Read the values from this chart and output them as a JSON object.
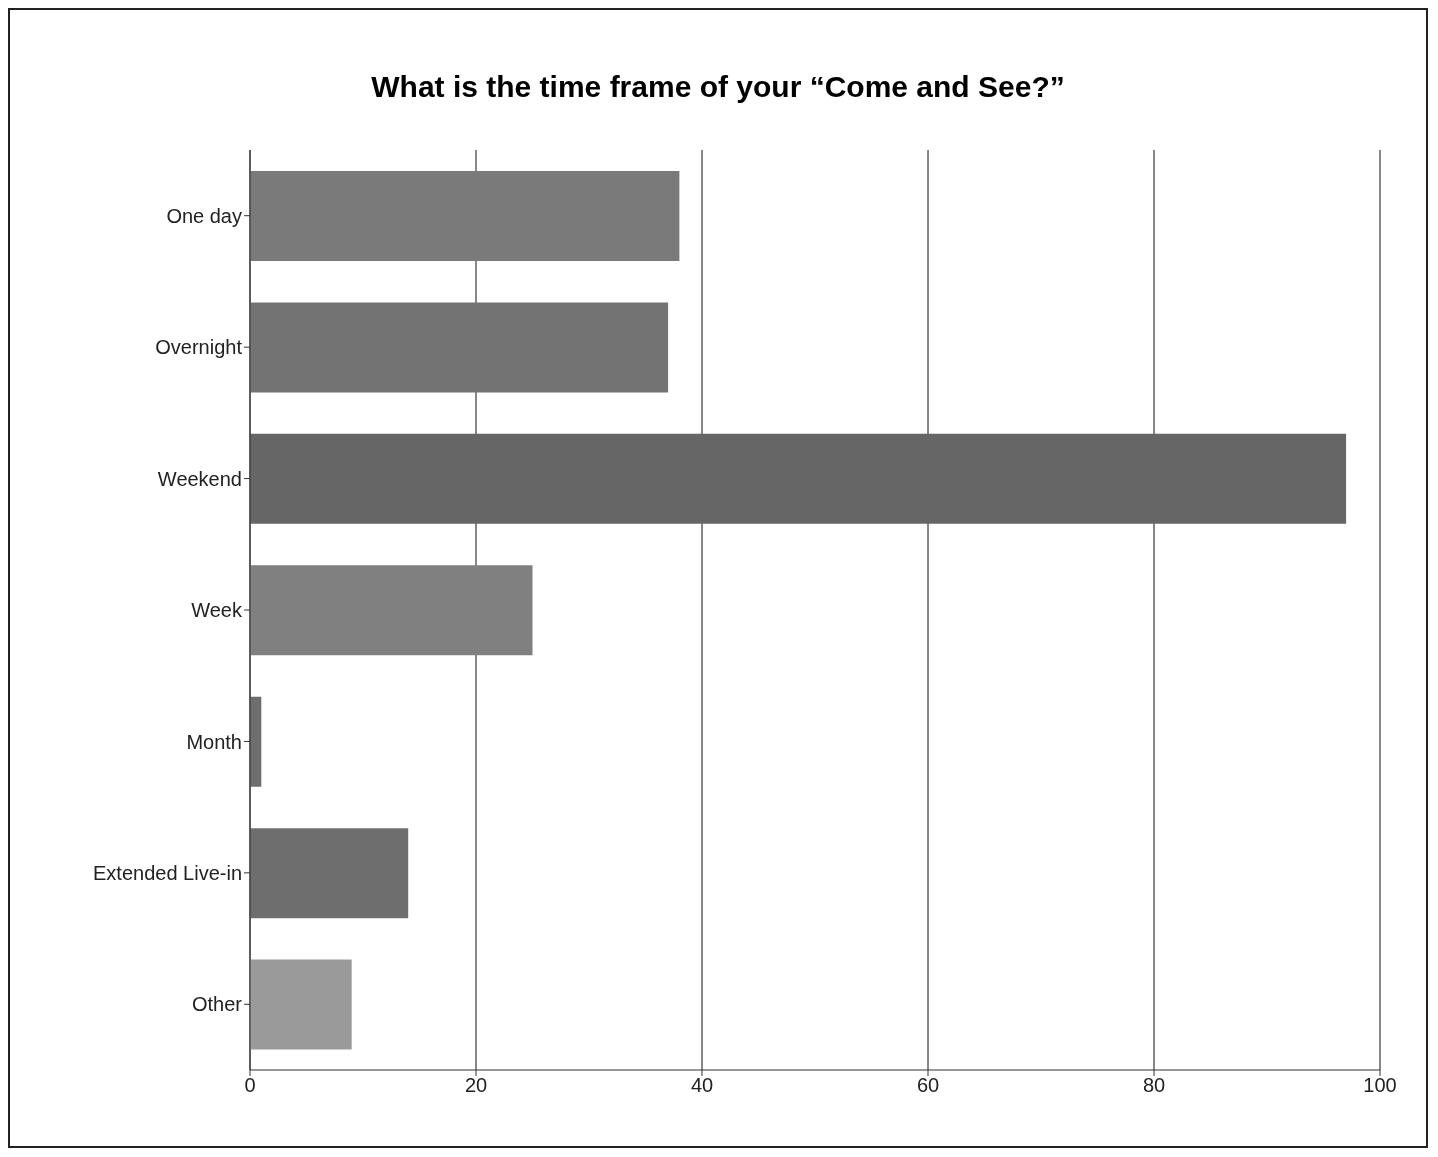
{
  "chart_data": {
    "type": "bar",
    "orientation": "horizontal",
    "title": "What is the time frame of your “Come and See?”",
    "categories": [
      "One day",
      "Overnight",
      "Weekend",
      "Week",
      "Month",
      "Extended Live-in",
      "Other"
    ],
    "values": [
      38,
      37,
      97,
      25,
      1,
      14,
      9
    ],
    "colors": [
      "#7a7a7a",
      "#737373",
      "#666666",
      "#808080",
      "#6e6e6e",
      "#6e6e6e",
      "#9a9a9a"
    ],
    "xlim": [
      0,
      100
    ],
    "xticks": [
      0,
      20,
      40,
      60,
      80,
      100
    ],
    "grid": "x"
  }
}
